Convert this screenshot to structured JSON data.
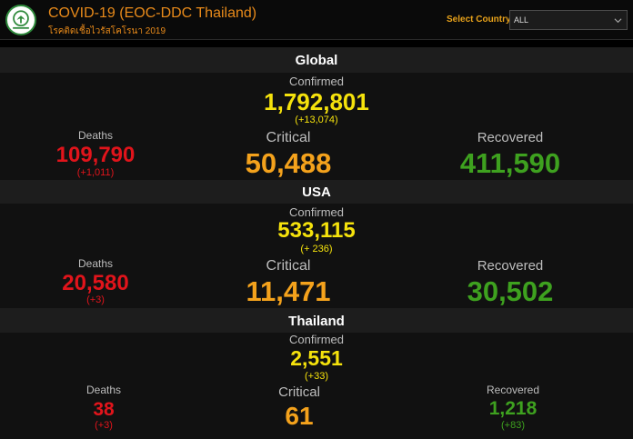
{
  "header": {
    "title": "COVID-19 (EOC-DDC Thailand)",
    "subtitle": "โรคติดเชื้อไวรัสโคโรนา 2019",
    "select_label": "Select Country",
    "select_value": "ALL"
  },
  "sections": [
    {
      "name": "Global",
      "confirmed_label": "Confirmed",
      "confirmed": "1,792,801",
      "confirmed_delta": "(+13,074)",
      "deaths_label": "Deaths",
      "deaths": "109,790",
      "deaths_delta": "(+1,011)",
      "critical_label": "Critical",
      "critical": "50,488",
      "recovered_label": "Recovered",
      "recovered": "411,590",
      "recovered_delta": ""
    },
    {
      "name": "USA",
      "confirmed_label": "Confirmed",
      "confirmed": "533,115",
      "confirmed_delta": "(+ 236)",
      "deaths_label": "Deaths",
      "deaths": "20,580",
      "deaths_delta": "(+3)",
      "critical_label": "Critical",
      "critical": "11,471",
      "recovered_label": "Recovered",
      "recovered": "30,502",
      "recovered_delta": ""
    },
    {
      "name": "Thailand",
      "confirmed_label": "Confirmed",
      "confirmed": "2,551",
      "confirmed_delta": "(+33)",
      "deaths_label": "Deaths",
      "deaths": "38",
      "deaths_delta": "(+3)",
      "critical_label": "Critical",
      "critical": "61",
      "recovered_label": "Recovered",
      "recovered": "1,218",
      "recovered_delta": "(+83)"
    }
  ],
  "colors": {
    "accent": "#e88a1a",
    "confirmed": "#f5e20c",
    "deaths": "#e1141b",
    "critical": "#f4a21c",
    "recovered": "#3ea11f"
  }
}
